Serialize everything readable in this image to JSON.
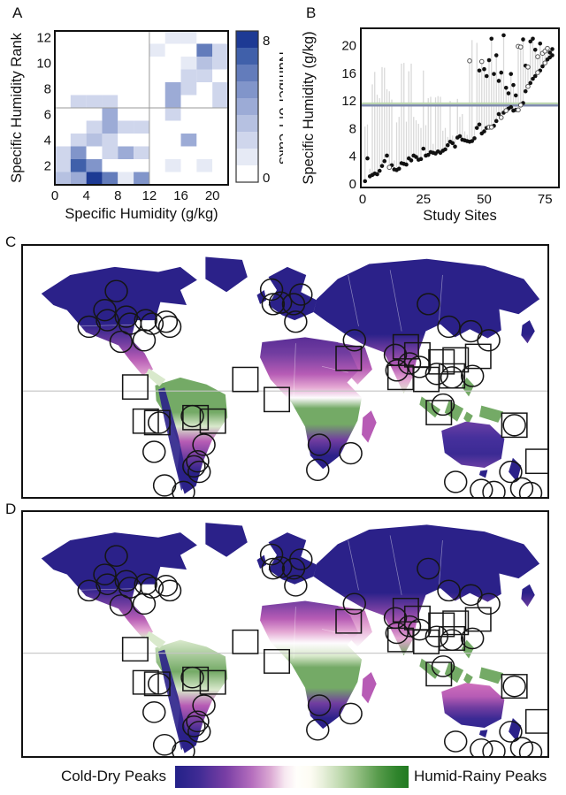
{
  "panels": {
    "a": "A",
    "b": "B",
    "c": "C",
    "d": "D"
  },
  "legend": {
    "left": "Cold-Dry Peaks",
    "right": "Humid-Rainy Peaks",
    "gradient_stops": [
      [
        0,
        "#232188"
      ],
      [
        0.1,
        "#3f2b94"
      ],
      [
        0.22,
        "#7a3fa5"
      ],
      [
        0.33,
        "#b66fbe"
      ],
      [
        0.41,
        "#dcaad4"
      ],
      [
        0.47,
        "#f7e8f1"
      ],
      [
        0.52,
        "#fffefb"
      ],
      [
        0.58,
        "#fdfcf3"
      ],
      [
        0.63,
        "#e9f0dc"
      ],
      [
        0.7,
        "#c4dcb4"
      ],
      [
        0.78,
        "#94bf83"
      ],
      [
        0.87,
        "#579b4b"
      ],
      [
        0.95,
        "#2f842c"
      ],
      [
        1,
        "#217a21"
      ]
    ]
  },
  "chart_data": [
    {
      "id": "A",
      "type": "heatmap",
      "xlabel": "Specific Humidity (g/kg)",
      "ylabel": "Specific Humidity Rank",
      "colorbar_label": "Number of Peaks",
      "colorbar_ticks": [
        0,
        8
      ],
      "x_ticks": [
        0,
        4,
        8,
        12,
        16,
        20
      ],
      "y_ticks": [
        2,
        4,
        6,
        8,
        10,
        12
      ],
      "x_range": [
        0,
        22
      ],
      "y_range": [
        0.5,
        12.5
      ],
      "value_range": [
        0,
        8
      ],
      "ref_line_x": 12,
      "ref_line_y": 6.5,
      "scale_colors": [
        "#ffffff",
        "#e6eaf5",
        "#cfd6ec",
        "#b6c1e1",
        "#9cabd6",
        "#8195ca",
        "#637cbb",
        "#4060aa",
        "#1d3a94"
      ],
      "rows_bottom_to_top": [
        [
          3,
          4,
          8,
          6,
          1,
          5,
          0,
          0,
          0,
          0,
          0
        ],
        [
          2,
          7,
          5,
          0,
          0,
          0,
          0,
          1,
          0,
          1,
          0
        ],
        [
          2,
          5,
          0,
          2,
          4,
          2,
          0,
          0,
          0,
          0,
          0
        ],
        [
          0,
          2,
          3,
          2,
          0,
          0,
          0,
          0,
          4,
          0,
          0
        ],
        [
          0,
          0,
          2,
          4,
          2,
          2,
          0,
          0,
          0,
          0,
          0
        ],
        [
          0,
          0,
          0,
          4,
          0,
          0,
          0,
          2,
          0,
          0,
          0
        ],
        [
          0,
          2,
          2,
          2,
          0,
          0,
          0,
          4,
          0,
          0,
          2
        ],
        [
          0,
          0,
          0,
          0,
          0,
          0,
          0,
          4,
          2,
          0,
          2
        ],
        [
          0,
          0,
          0,
          0,
          0,
          0,
          0,
          0,
          2,
          2,
          0
        ],
        [
          0,
          0,
          0,
          0,
          0,
          0,
          0,
          0,
          1,
          3,
          2
        ],
        [
          0,
          0,
          0,
          0,
          0,
          0,
          1,
          0,
          0,
          6,
          2
        ],
        [
          0,
          0,
          0,
          0,
          0,
          0,
          0,
          1,
          1,
          0,
          0
        ]
      ]
    },
    {
      "id": "B",
      "type": "scatter",
      "xlabel": "Study Sites",
      "ylabel": "Specific Humidity (g/kg)",
      "x_ticks": [
        0,
        25,
        50,
        75
      ],
      "y_ticks": [
        0,
        4,
        8,
        12,
        16,
        20
      ],
      "x_range": [
        0,
        81
      ],
      "y_range": [
        0,
        22.5
      ],
      "hline": {
        "y": 11.5,
        "green": "#b7d3aa",
        "slate": "#7e89ae"
      },
      "bar_color": "#d9d9d9",
      "bars": [
        [
          1,
          0.4,
          8.3
        ],
        [
          2,
          3.7,
          8.6
        ],
        [
          3,
          1.1,
          2.2
        ],
        [
          4,
          1.3,
          14.4
        ],
        [
          5,
          1.5,
          16.2
        ],
        [
          6,
          1.4,
          12.9
        ],
        [
          7,
          1.9,
          12.4
        ],
        [
          8,
          2.6,
          16.9
        ],
        [
          9,
          3.3,
          16.8
        ],
        [
          10,
          4.1,
          13.7
        ],
        [
          11,
          2.4,
          13.4
        ],
        [
          12,
          2.7,
          12.2
        ],
        [
          13,
          2.1,
          3.4
        ],
        [
          14,
          2.0,
          8.9
        ],
        [
          15,
          2.2,
          9.7
        ],
        [
          16,
          3.0,
          17.4
        ],
        [
          17,
          2.9,
          17.5
        ],
        [
          18,
          2.8,
          9.0
        ],
        [
          19,
          3.7,
          16.3
        ],
        [
          20,
          3.4,
          17.4
        ],
        [
          21,
          4.1,
          9.7
        ],
        [
          22,
          3.9,
          9.2
        ],
        [
          23,
          3.5,
          8.7
        ],
        [
          24,
          3.6,
          8.1
        ],
        [
          25,
          5.1,
          16.4
        ],
        [
          26,
          4.1,
          8.5
        ],
        [
          27,
          4.2,
          12.4
        ],
        [
          28,
          4.6,
          12.6
        ],
        [
          29,
          4.5,
          5.8
        ],
        [
          30,
          4.4,
          12.5
        ],
        [
          31,
          4.7,
          12.7
        ],
        [
          32,
          4.5,
          12.6
        ],
        [
          33,
          4.8,
          7.7
        ],
        [
          34,
          5.0,
          8.1
        ],
        [
          35,
          5.6,
          6.8
        ],
        [
          36,
          6.1,
          12.0
        ],
        [
          37,
          5.9,
          7.0
        ],
        [
          38,
          5.4,
          6.6
        ],
        [
          39,
          6.7,
          12.3
        ],
        [
          40,
          6.9,
          9.7
        ],
        [
          41,
          6.4,
          10.1
        ],
        [
          42,
          6.3,
          7.6
        ],
        [
          43,
          6.2,
          7.1
        ],
        [
          44,
          6.1,
          17.8
        ],
        [
          45,
          6.2,
          20.8
        ],
        [
          46,
          6.6,
          8.3
        ],
        [
          47,
          8.1,
          20.4
        ],
        [
          48,
          8.6,
          16.4
        ],
        [
          49,
          7.3,
          17.7
        ],
        [
          50,
          7.6,
          16.6
        ],
        [
          51,
          8.1,
          15.6
        ],
        [
          52,
          8.2,
          17.9
        ],
        [
          53,
          8.2,
          21.0
        ],
        [
          54,
          8.4,
          15.9
        ],
        [
          55,
          9.1,
          18.6
        ],
        [
          56,
          10.1,
          14.9
        ],
        [
          57,
          9.6,
          16.1
        ],
        [
          58,
          10.3,
          21.5
        ],
        [
          59,
          10.6,
          13.9
        ],
        [
          60,
          10.9,
          13.1
        ],
        [
          61,
          11.1,
          15.9
        ],
        [
          62,
          10.6,
          14.3
        ],
        [
          63,
          10.7,
          12.8
        ],
        [
          64,
          10.7,
          19.9
        ],
        [
          65,
          11.4,
          19.8
        ],
        [
          66,
          11.7,
          20.9
        ],
        [
          67,
          13.4,
          17.1
        ],
        [
          68,
          14.1,
          16.9
        ],
        [
          69,
          14.6,
          20.6
        ],
        [
          70,
          15.2,
          21.0
        ],
        [
          71,
          15.6,
          19.4
        ],
        [
          72,
          16.1,
          18.4
        ],
        [
          73,
          16.4,
          20.3
        ],
        [
          74,
          17.0,
          18.9
        ],
        [
          75,
          17.5,
          19.2
        ],
        [
          76,
          18.0,
          19.6
        ],
        [
          77,
          18.3,
          19.0
        ],
        [
          78,
          18.6,
          19.5
        ]
      ],
      "filled_points": [
        [
          1,
          0.4
        ],
        [
          2,
          3.7
        ],
        [
          3,
          1.1
        ],
        [
          4,
          1.3
        ],
        [
          5,
          1.5
        ],
        [
          6,
          1.4
        ],
        [
          7,
          1.9
        ],
        [
          8,
          2.6
        ],
        [
          9,
          3.3
        ],
        [
          10,
          4.1
        ],
        [
          12,
          2.7
        ],
        [
          13,
          2.1
        ],
        [
          14,
          2.0
        ],
        [
          15,
          2.2
        ],
        [
          16,
          3.0
        ],
        [
          17,
          2.9
        ],
        [
          18,
          2.8
        ],
        [
          19,
          3.7
        ],
        [
          20,
          3.4
        ],
        [
          21,
          4.1
        ],
        [
          22,
          3.9
        ],
        [
          23,
          3.5
        ],
        [
          24,
          3.6
        ],
        [
          25,
          5.1
        ],
        [
          26,
          4.1
        ],
        [
          27,
          4.2
        ],
        [
          28,
          4.6
        ],
        [
          29,
          4.5
        ],
        [
          30,
          4.4
        ],
        [
          31,
          4.7
        ],
        [
          32,
          4.5
        ],
        [
          33,
          4.8
        ],
        [
          34,
          5.0
        ],
        [
          35,
          5.6
        ],
        [
          36,
          6.1
        ],
        [
          37,
          5.9
        ],
        [
          38,
          5.4
        ],
        [
          39,
          6.7
        ],
        [
          40,
          6.9
        ],
        [
          41,
          6.4
        ],
        [
          42,
          6.3
        ],
        [
          43,
          6.2
        ],
        [
          44,
          6.1
        ],
        [
          45,
          6.2
        ],
        [
          46,
          6.6
        ],
        [
          47,
          8.1
        ],
        [
          48,
          8.6
        ],
        [
          49,
          7.3
        ],
        [
          50,
          7.6
        ],
        [
          51,
          8.1
        ],
        [
          54,
          8.4
        ],
        [
          55,
          9.1
        ],
        [
          56,
          10.1
        ],
        [
          58,
          10.3
        ],
        [
          60,
          10.9
        ],
        [
          61,
          11.1
        ],
        [
          62,
          10.6
        ],
        [
          63,
          10.7
        ],
        [
          66,
          11.7
        ],
        [
          48,
          16.4
        ],
        [
          50,
          16.6
        ],
        [
          51,
          15.6
        ],
        [
          52,
          17.9
        ],
        [
          53,
          21.0
        ],
        [
          54,
          15.9
        ],
        [
          55,
          18.6
        ],
        [
          56,
          14.9
        ],
        [
          57,
          16.1
        ],
        [
          58,
          21.5
        ],
        [
          59,
          13.9
        ],
        [
          60,
          13.1
        ],
        [
          61,
          15.9
        ],
        [
          62,
          14.3
        ],
        [
          63,
          12.8
        ],
        [
          66,
          20.9
        ],
        [
          67,
          17.1
        ],
        [
          69,
          20.6
        ],
        [
          70,
          21.0
        ],
        [
          71,
          19.4
        ],
        [
          73,
          20.3
        ],
        [
          77,
          19.0
        ],
        [
          78,
          19.5
        ],
        [
          67,
          13.4
        ],
        [
          69,
          14.6
        ],
        [
          70,
          15.2
        ],
        [
          71,
          15.6
        ],
        [
          73,
          16.4
        ],
        [
          74,
          17.0
        ],
        [
          76,
          18.0
        ],
        [
          77,
          18.3
        ],
        [
          78,
          18.6
        ]
      ],
      "open_points": [
        [
          11,
          2.4
        ],
        [
          52,
          8.2
        ],
        [
          53,
          8.2
        ],
        [
          57,
          9.6
        ],
        [
          59,
          10.6
        ],
        [
          64,
          10.7
        ],
        [
          65,
          11.4
        ],
        [
          44,
          17.8
        ],
        [
          49,
          17.7
        ],
        [
          64,
          19.9
        ],
        [
          65,
          19.8
        ],
        [
          68,
          16.9
        ],
        [
          72,
          18.4
        ],
        [
          74,
          18.9
        ],
        [
          75,
          19.2
        ],
        [
          76,
          19.6
        ],
        [
          68,
          14.1
        ],
        [
          72,
          16.1
        ],
        [
          75,
          17.5
        ]
      ]
    },
    {
      "id": "C",
      "type": "map",
      "variant": "c",
      "description": "Global map of humidity seasonality with study sites"
    },
    {
      "id": "D",
      "type": "map",
      "variant": "d",
      "description": "Global map of humidity seasonality with study sites"
    }
  ],
  "map": {
    "equator_color": "#c4c4c4",
    "marker_color": "#151515",
    "palette": {
      "navy": "#2b2189",
      "purple": "#713da0",
      "orchid": "#b75cb5",
      "pink": "#e4a7d3",
      "white": "#fdfbfd",
      "palegreen": "#d9e9cc",
      "green": "#74aa66",
      "darkgreen": "#2e7c34"
    },
    "circles": [
      [
        178,
        90
      ],
      [
        126,
        161
      ],
      [
        161,
        148
      ],
      [
        197,
        141
      ],
      [
        204,
        155
      ],
      [
        234,
        148
      ],
      [
        246,
        155
      ],
      [
        273,
        151
      ],
      [
        280,
        161
      ],
      [
        187,
        191
      ],
      [
        231,
        188
      ],
      [
        156,
        128
      ],
      [
        474,
        87
      ],
      [
        491,
        113
      ],
      [
        516,
        116
      ],
      [
        530,
        97
      ],
      [
        520,
        151
      ],
      [
        477,
        116
      ],
      [
        632,
        188
      ],
      [
        710,
        217
      ],
      [
        773,
        116
      ],
      [
        812,
        161
      ],
      [
        854,
        170
      ],
      [
        888,
        188
      ],
      [
        713,
        248
      ],
      [
        737,
        234
      ],
      [
        756,
        241
      ],
      [
        789,
        255
      ],
      [
        801,
        316
      ],
      [
        818,
        262
      ],
      [
        857,
        259
      ],
      [
        937,
        357
      ],
      [
        260,
        352
      ],
      [
        323,
        339
      ],
      [
        250,
        410
      ],
      [
        345,
        396
      ],
      [
        333,
        429
      ],
      [
        336,
        450
      ],
      [
        270,
        477
      ],
      [
        306,
        490
      ],
      [
        326,
        439
      ],
      [
        565,
        396
      ],
      [
        562,
        446
      ],
      [
        625,
        413
      ],
      [
        825,
        470
      ],
      [
        874,
        486
      ],
      [
        898,
        490
      ],
      [
        930,
        450
      ],
      [
        951,
        483
      ],
      [
        968,
        492
      ]
    ],
    "squares": [
      [
        730,
        201
      ],
      [
        752,
        217
      ],
      [
        720,
        262
      ],
      [
        769,
        266
      ],
      [
        798,
        231
      ],
      [
        825,
        227
      ],
      [
        818,
        259
      ],
      [
        868,
        220
      ],
      [
        793,
        332
      ],
      [
        937,
        357
      ],
      [
        983,
        429
      ],
      [
        621,
        224
      ],
      [
        424,
        266
      ],
      [
        484,
        306
      ],
      [
        214,
        281
      ],
      [
        234,
        349
      ],
      [
        256,
        352
      ],
      [
        329,
        342
      ],
      [
        362,
        349
      ]
    ]
  }
}
